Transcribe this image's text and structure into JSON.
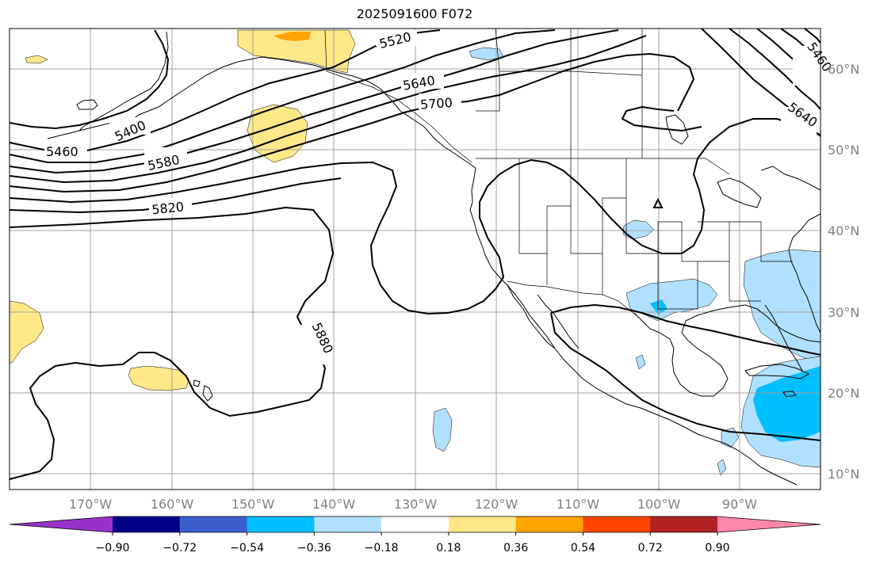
{
  "title": "2025091600 F072",
  "map": {
    "lon_ticks": [
      "170°W",
      "160°W",
      "150°W",
      "140°W",
      "130°W",
      "120°W",
      "110°W",
      "100°W",
      "90°W"
    ],
    "lat_ticks": [
      "60°N",
      "50°N",
      "40°N",
      "30°N",
      "20°N",
      "10°N"
    ],
    "contour_labels": [
      "5520",
      "5640",
      "5700",
      "5400",
      "5460",
      "5580",
      "5820",
      "5880",
      "5460",
      "5640"
    ],
    "colors": {
      "neg_strong": "#00bfff",
      "neg_weak": "#b0e0ff",
      "pos_weak": "#ffe888",
      "pos_mid": "#ffa500",
      "contour": "#000000",
      "grid": "#a0a0a0"
    }
  },
  "colorbar": {
    "colors": [
      "#9932cc",
      "#00008b",
      "#3a5fcd",
      "#00bfff",
      "#b0e0ff",
      "#ffffff",
      "#ffe888",
      "#ffa500",
      "#ff4500",
      "#b22222",
      "#ff88aa"
    ],
    "tick_labels": [
      "−0.90",
      "−0.72",
      "−0.54",
      "−0.36",
      "−0.18",
      "0.18",
      "0.36",
      "0.54",
      "0.72",
      "0.90"
    ]
  }
}
